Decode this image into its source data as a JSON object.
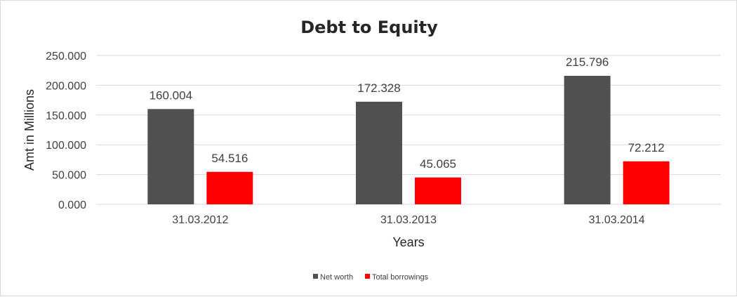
{
  "chart_data": {
    "type": "bar",
    "title": "Debt to Equity",
    "xlabel": "Years",
    "ylabel": "Amt in Millions",
    "categories": [
      "31.03.2012",
      "31.03.2013",
      "31.03.2014"
    ],
    "series": [
      {
        "name": "Net worth",
        "color": "#505050",
        "values": [
          160.004,
          172.328,
          215.796
        ],
        "labels": [
          "160.004",
          "172.328",
          "215.796"
        ]
      },
      {
        "name": "Total borrowings",
        "color": "#ff0000",
        "values": [
          54.516,
          45.065,
          72.212
        ],
        "labels": [
          "54.516",
          "45.065",
          "72.212"
        ]
      }
    ],
    "ylim": [
      0,
      250
    ],
    "yticks": [
      "0.000",
      "50.000",
      "100.000",
      "150.000",
      "200.000",
      "250.000"
    ],
    "grid": true,
    "legend": "bottom"
  }
}
